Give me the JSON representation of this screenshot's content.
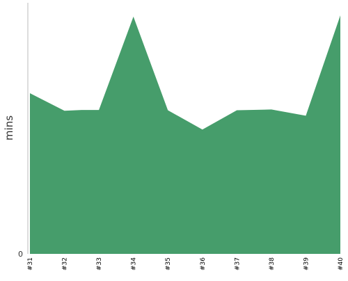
{
  "chart_data": {
    "type": "area",
    "title": "",
    "xlabel": "",
    "ylabel": "mins",
    "x": [
      "#31",
      "#32",
      "#32.5",
      "#33",
      "#34",
      "#35",
      "#36",
      "#37",
      "#38",
      "#39",
      "#40"
    ],
    "x_tick_labels": [
      "#31",
      "#32",
      "#33",
      "#34",
      "#35",
      "#36",
      "#37",
      "#38",
      "#39",
      "#40"
    ],
    "series": [
      {
        "values": [
          64,
          57,
          57.3,
          57.3,
          94.5,
          57.2,
          49.5,
          57.2,
          57.5,
          55,
          95
        ]
      }
    ],
    "y_tick_labels": [
      "0"
    ],
    "ylim": [
      0,
      100
    ],
    "grid": false,
    "colors": {
      "area": "#469d6b",
      "axis": "#bbbbbb"
    }
  }
}
